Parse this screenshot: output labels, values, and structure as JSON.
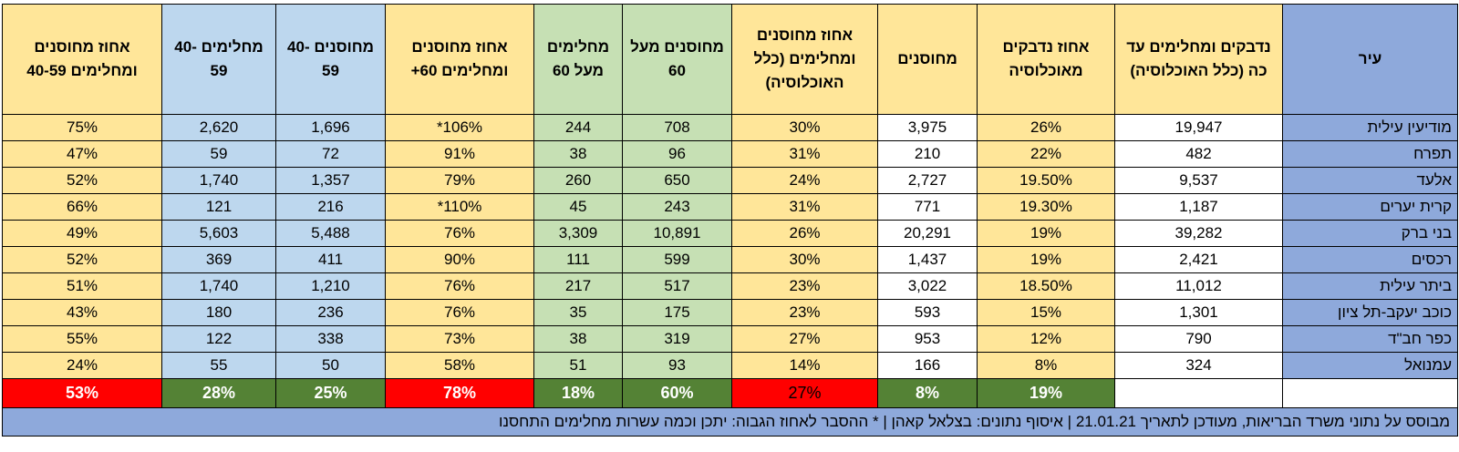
{
  "table": {
    "headers": [
      "עיר",
      "נדבקים ומחלימים עד כה (כלל האוכלוסיה)",
      "אחוז נדבקים מאוכלוסיה",
      "מחוסנים",
      "אחוז מחוסנים ומחלימים (כלל האוכלוסיה)",
      "מחוסנים מעל 60",
      "מחלימים מעל 60",
      "אחוז מחוסנים ומחלימים 60+",
      "מחוסנים 40-59",
      "מחלימים 40-59",
      "אחוז מחוסנים ומחלימים 40-59"
    ],
    "rows": [
      [
        "מודיעין עילית",
        "19,947",
        "26%",
        "3,975",
        "30%",
        "708",
        "244",
        "*106%",
        "1,696",
        "2,620",
        "75%"
      ],
      [
        "תפרח",
        "482",
        "22%",
        "210",
        "31%",
        "96",
        "38",
        "91%",
        "72",
        "59",
        "47%"
      ],
      [
        "אלעד",
        "9,537",
        "19.50%",
        "2,727",
        "24%",
        "650",
        "260",
        "79%",
        "1,357",
        "1,740",
        "52%"
      ],
      [
        "קרית יערים",
        "1,187",
        "19.30%",
        "771",
        "31%",
        "243",
        "45",
        "*110%",
        "216",
        "121",
        "66%"
      ],
      [
        "בני ברק",
        "39,282",
        "19%",
        "20,291",
        "26%",
        "10,891",
        "3,309",
        "76%",
        "5,488",
        "5,603",
        "49%"
      ],
      [
        "רכסים",
        "2,421",
        "19%",
        "1,437",
        "30%",
        "599",
        "111",
        "90%",
        "411",
        "369",
        "52%"
      ],
      [
        "ביתר עילית",
        "11,012",
        "18.50%",
        "3,022",
        "23%",
        "517",
        "217",
        "76%",
        "1,210",
        "1,740",
        "51%"
      ],
      [
        "כוכב יעקב-תל ציון",
        "1,301",
        "15%",
        "593",
        "23%",
        "175",
        "35",
        "76%",
        "236",
        "180",
        "43%"
      ],
      [
        "כפר חב\"ד",
        "790",
        "12%",
        "953",
        "27%",
        "319",
        "38",
        "73%",
        "338",
        "122",
        "55%"
      ],
      [
        "עמנואל",
        "324",
        "8%",
        "166",
        "14%",
        "93",
        "51",
        "58%",
        "50",
        "55",
        "24%"
      ]
    ],
    "totals": [
      "19%",
      "8%",
      "27%",
      "60%",
      "18%",
      "78%",
      "25%",
      "28%",
      "53%"
    ],
    "footer": "מבוסס על נתוני משרד הבריאות, מעודכן לתאריך 21.01.21 | איסוף נתונים: בצלאל קאהן | * ההסבר לאחוז הגבוה: יתכן וכמה עשרות מחלימים התחסנו"
  }
}
